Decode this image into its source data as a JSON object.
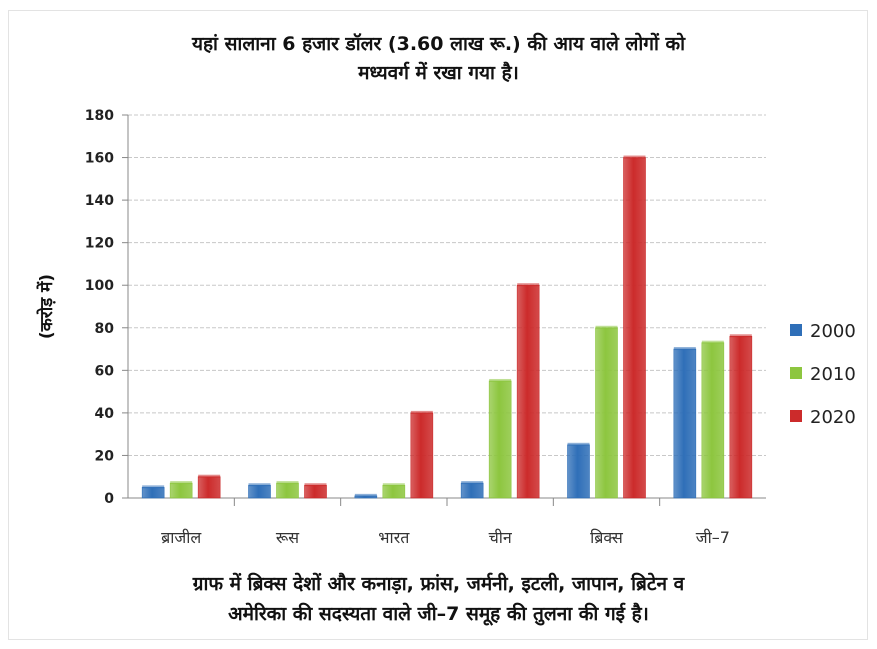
{
  "title_lines": [
    "यहां सालाना 6 हजार डॉलर (3.60 लाख रू.) की आय वाले लोगों को",
    "मध्यवर्ग में रखा गया है।"
  ],
  "caption_lines": [
    "ग्राफ में ब्रिक्स देशों और कनाड़ा, फ्रांस, जर्मनी, इटली, जापान, ब्रिटेन व",
    "अमेरिका की सदस्यता वाले जी–7 समूह की तुलना की गई है।"
  ],
  "colors": {
    "2000": "#2f6fb8",
    "2010": "#8dc63f",
    "2020": "#cc2b2b"
  },
  "chart_data": {
    "type": "bar",
    "title": "यहां सालाना 6 हजार डॉलर (3.60 लाख रू.) की आय वाले लोगों को मध्यवर्ग में रखा गया है।",
    "xlabel": "",
    "ylabel": "(करोड़ में)",
    "ylim": [
      0,
      180
    ],
    "yticks": [
      0,
      20,
      40,
      60,
      80,
      100,
      120,
      140,
      160,
      180
    ],
    "grid": true,
    "legend": "right",
    "categories": [
      "ब्राजील",
      "रूस",
      "भारत",
      "चीन",
      "ब्रिक्स",
      "जी–7"
    ],
    "series": [
      {
        "name": "2000",
        "values": [
          5,
          6,
          1,
          7,
          25,
          70
        ]
      },
      {
        "name": "2010",
        "values": [
          7,
          7,
          6,
          55,
          80,
          73
        ]
      },
      {
        "name": "2020",
        "values": [
          10,
          6,
          40,
          100,
          160,
          76
        ]
      }
    ]
  }
}
